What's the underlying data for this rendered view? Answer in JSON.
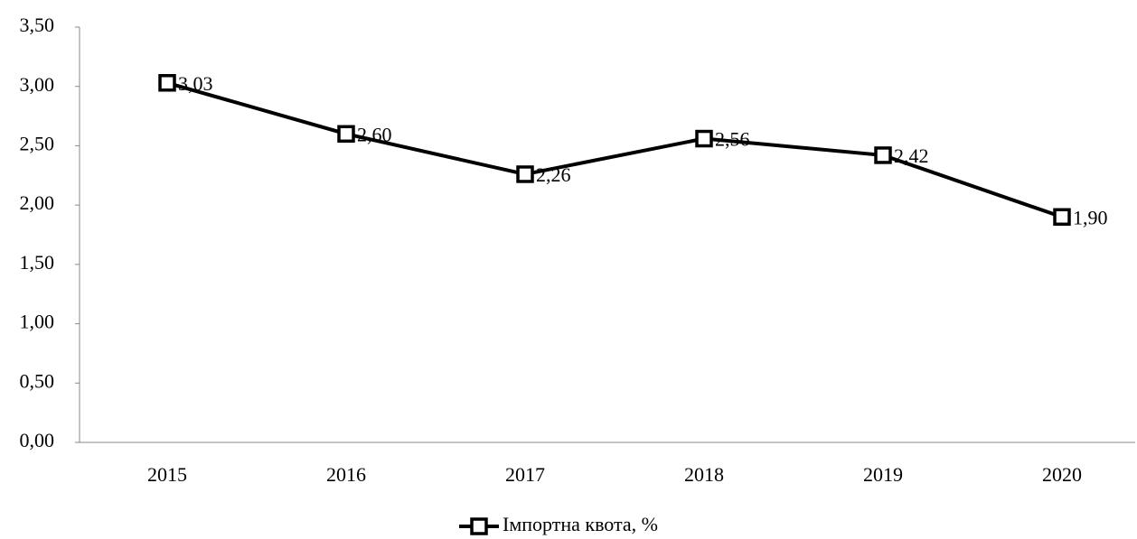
{
  "chart_data": {
    "type": "line",
    "categories": [
      "2015",
      "2016",
      "2017",
      "2018",
      "2019",
      "2020"
    ],
    "series": [
      {
        "name": "Імпортна квота, %",
        "color": "#000000",
        "values": [
          3.03,
          2.6,
          2.26,
          2.56,
          2.42,
          1.9
        ],
        "value_labels": [
          "3,03",
          "2,60",
          "2,26",
          "2,56",
          "2,42",
          "1,90"
        ]
      }
    ],
    "ylim": [
      0,
      3.5
    ],
    "yticks": [
      {
        "value": 0,
        "label": "0,00"
      },
      {
        "value": 0.5,
        "label": "0,50"
      },
      {
        "value": 1,
        "label": "1,00"
      },
      {
        "value": 1.5,
        "label": "1,50"
      },
      {
        "value": 2,
        "label": "2,00"
      },
      {
        "value": 2.5,
        "label": "2,50"
      },
      {
        "value": 3,
        "label": "3,00"
      },
      {
        "value": 3.5,
        "label": "3,50"
      }
    ],
    "legend": "bottom",
    "grid": false
  }
}
